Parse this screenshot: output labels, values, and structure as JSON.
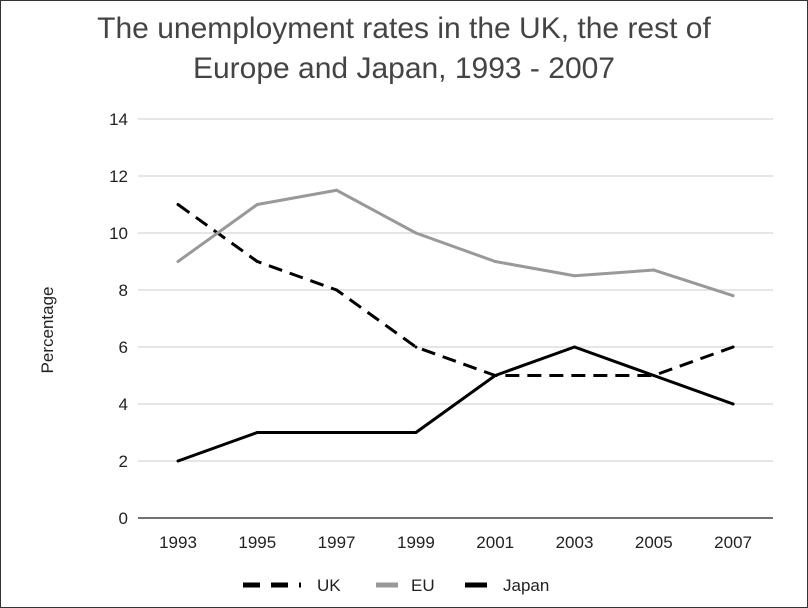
{
  "chart_data": {
    "type": "line",
    "title_line1": "The unemployment rates in the UK, the rest of",
    "title_line2": "Europe and Japan, 1993 - 2007",
    "xlabel": "",
    "ylabel": "Percentage",
    "categories": [
      "1993",
      "1995",
      "1997",
      "1999",
      "2001",
      "2003",
      "2005",
      "2007"
    ],
    "ylim": [
      0,
      14
    ],
    "yticks": [
      0,
      2,
      4,
      6,
      8,
      10,
      12,
      14
    ],
    "grid": true,
    "legend_position": "bottom",
    "series": [
      {
        "name": "UK",
        "color": "#000000",
        "dashed": true,
        "values": [
          11,
          9,
          8,
          6,
          5,
          5,
          5,
          6
        ]
      },
      {
        "name": "EU",
        "color": "#999999",
        "dashed": false,
        "values": [
          9,
          11,
          11.5,
          10,
          9,
          8.5,
          8.7,
          7.8
        ]
      },
      {
        "name": "Japan",
        "color": "#000000",
        "dashed": false,
        "values": [
          2,
          3,
          3,
          3,
          5,
          6,
          5,
          4
        ]
      }
    ]
  }
}
